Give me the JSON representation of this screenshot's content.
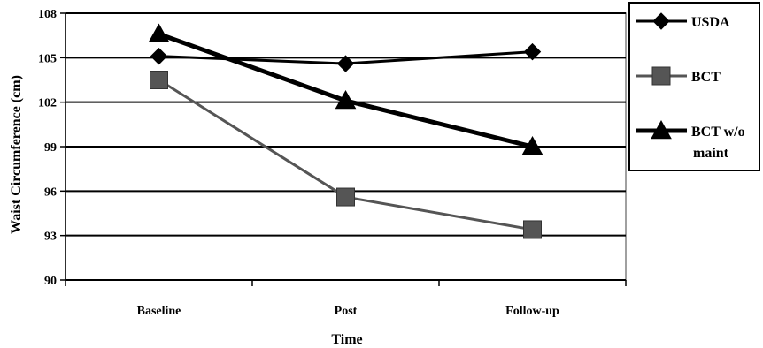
{
  "chart_data": {
    "type": "line",
    "categories": [
      "Baseline",
      "Post",
      "Follow-up"
    ],
    "series": [
      {
        "name": "USDA",
        "values": [
          105.1,
          104.6,
          105.4
        ],
        "color": "#000000",
        "marker": "diamond"
      },
      {
        "name": "BCT",
        "values": [
          103.5,
          95.6,
          93.4
        ],
        "color": "#555555",
        "marker": "square"
      },
      {
        "name": "BCT w/o maint",
        "legend_lines": [
          "BCT w/o",
          "maint"
        ],
        "values": [
          106.6,
          102.1,
          99.0
        ],
        "color": "#000000",
        "marker": "triangle"
      }
    ],
    "title": "",
    "xlabel": "Time",
    "ylabel": "Waist Circumference (cm)",
    "ylim": [
      90,
      108
    ],
    "yticks": [
      90,
      93,
      96,
      99,
      102,
      105,
      108
    ],
    "grid": true,
    "legend_position": "right"
  }
}
